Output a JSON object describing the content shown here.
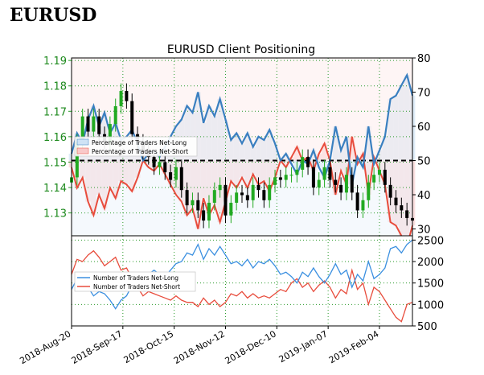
{
  "page": {
    "title": "EURUSD"
  },
  "chart_data": [
    {
      "type": "candlestick-area",
      "title": "EURUSD Client Positioning",
      "price_axis": {
        "ticks": [
          "1.19",
          "1.18",
          "1.17",
          "1.16",
          "1.15",
          "1.14",
          "1.13"
        ],
        "ylim": [
          1.121,
          1.191
        ]
      },
      "pct_axis": {
        "ticks": [
          "80",
          "70",
          "60",
          "50",
          "40",
          "30"
        ],
        "ylim": [
          28,
          80
        ]
      },
      "x_ticks": [
        "2018-Aug-20",
        "2018-Sep-17",
        "2018-Oct-15",
        "2018-Nov-12",
        "2018-Dec-10",
        "2019-Jan-07",
        "2019-Feb-04"
      ],
      "x_tick_days": [
        0,
        28,
        56,
        84,
        112,
        140,
        168
      ],
      "x_range_days": [
        0,
        186
      ],
      "reference_line": 50,
      "legend": [
        "Percentage of Traders Net-Long",
        "Percentage of Traders Net-Short"
      ],
      "series": [
        {
          "name": "Percentage of Traders Net-Long",
          "color": "#3a7fc0",
          "x": [
            0,
            3,
            6,
            9,
            12,
            15,
            18,
            21,
            24,
            27,
            30,
            33,
            36,
            39,
            42,
            45,
            48,
            51,
            54,
            57,
            60,
            63,
            66,
            69,
            72,
            75,
            78,
            81,
            84,
            87,
            90,
            93,
            96,
            99,
            102,
            105,
            108,
            111,
            114,
            117,
            120,
            123,
            126,
            129,
            132,
            135,
            138,
            141,
            144,
            147,
            150,
            153,
            156,
            159,
            162,
            165,
            168,
            171,
            174,
            177,
            180,
            183,
            186
          ],
          "values": [
            52,
            58,
            55,
            62,
            66,
            60,
            64,
            58,
            61,
            56,
            57,
            59,
            55,
            50,
            52,
            53,
            51,
            54,
            57,
            60,
            62,
            66,
            64,
            70,
            61,
            66,
            63,
            68,
            62,
            56,
            58,
            55,
            58,
            54,
            57,
            56,
            59,
            55,
            50,
            52,
            49,
            46,
            50,
            49,
            53,
            48,
            45,
            50,
            60,
            53,
            57,
            43,
            51,
            48,
            60,
            49,
            53,
            57,
            68,
            69,
            72,
            75,
            69
          ]
        },
        {
          "name": "Percentage of Traders Net-Short",
          "color": "#e84c3c",
          "x": [
            0,
            3,
            6,
            9,
            12,
            15,
            18,
            21,
            24,
            27,
            30,
            33,
            36,
            39,
            42,
            45,
            48,
            51,
            54,
            57,
            60,
            63,
            66,
            69,
            72,
            75,
            78,
            81,
            84,
            87,
            90,
            93,
            96,
            99,
            102,
            105,
            108,
            111,
            114,
            117,
            120,
            123,
            126,
            129,
            132,
            135,
            138,
            141,
            144,
            147,
            150,
            153,
            156,
            159,
            162,
            165,
            168,
            171,
            174,
            177,
            180,
            183,
            186
          ],
          "values": [
            48,
            42,
            45,
            38,
            34,
            40,
            36,
            42,
            39,
            44,
            43,
            41,
            45,
            50,
            48,
            47,
            49,
            46,
            43,
            40,
            38,
            34,
            36,
            30,
            39,
            34,
            37,
            32,
            38,
            44,
            42,
            45,
            42,
            46,
            43,
            44,
            41,
            45,
            50,
            48,
            51,
            54,
            50,
            51,
            47,
            52,
            55,
            50,
            40,
            47,
            43,
            57,
            49,
            52,
            40,
            51,
            47,
            43,
            32,
            31,
            28,
            25,
            31
          ]
        },
        {
          "name": "EURUSD",
          "type": "candles",
          "color_up": "#22aa22",
          "color_down": "#000000",
          "x": [
            0,
            3,
            6,
            9,
            12,
            15,
            18,
            21,
            24,
            27,
            30,
            33,
            36,
            39,
            42,
            45,
            48,
            51,
            54,
            57,
            60,
            63,
            66,
            69,
            72,
            75,
            78,
            81,
            84,
            87,
            90,
            93,
            96,
            99,
            102,
            105,
            108,
            111,
            114,
            117,
            120,
            123,
            126,
            129,
            132,
            135,
            138,
            141,
            144,
            147,
            150,
            153,
            156,
            159,
            162,
            165,
            168,
            171,
            174,
            177,
            180,
            183,
            186
          ],
          "close": [
            1.144,
            1.158,
            1.168,
            1.162,
            1.168,
            1.161,
            1.158,
            1.165,
            1.172,
            1.178,
            1.174,
            1.161,
            1.158,
            1.154,
            1.152,
            1.148,
            1.15,
            1.146,
            1.143,
            1.148,
            1.139,
            1.133,
            1.135,
            1.131,
            1.127,
            1.134,
            1.139,
            1.141,
            1.129,
            1.134,
            1.138,
            1.137,
            1.135,
            1.141,
            1.139,
            1.135,
            1.141,
            1.144,
            1.143,
            1.145,
            1.145,
            1.147,
            1.152,
            1.148,
            1.14,
            1.143,
            1.148,
            1.143,
            1.141,
            1.138,
            1.145,
            1.138,
            1.131,
            1.135,
            1.142,
            1.145,
            1.147,
            1.141,
            1.136,
            1.133,
            1.131,
            1.128,
            1.127
          ]
        }
      ]
    },
    {
      "type": "line",
      "y_axis": {
        "ticks": [
          "2500",
          "2000",
          "1500",
          "1000",
          "500"
        ],
        "ylim": [
          500,
          2600
        ]
      },
      "legend": [
        "Number of Traders Net-Long",
        "Number of Traders Net-Short"
      ],
      "series": [
        {
          "name": "Number of Traders Net-Long",
          "color": "#3a8fe0",
          "x": [
            0,
            3,
            6,
            9,
            12,
            15,
            18,
            21,
            24,
            27,
            30,
            33,
            36,
            39,
            42,
            45,
            48,
            51,
            54,
            57,
            60,
            63,
            66,
            69,
            72,
            75,
            78,
            81,
            84,
            87,
            90,
            93,
            96,
            99,
            102,
            105,
            108,
            111,
            114,
            117,
            120,
            123,
            126,
            129,
            132,
            135,
            138,
            141,
            144,
            147,
            150,
            153,
            156,
            159,
            162,
            165,
            168,
            171,
            174,
            177,
            180,
            183,
            186
          ],
          "values": [
            1350,
            1600,
            1550,
            1400,
            1200,
            1300,
            1250,
            1100,
            900,
            1100,
            1200,
            1450,
            1550,
            1650,
            1700,
            1800,
            1700,
            1650,
            1800,
            1950,
            2000,
            2200,
            2150,
            2400,
            2050,
            2300,
            2150,
            2350,
            2150,
            1950,
            2000,
            1900,
            2050,
            1850,
            2000,
            1950,
            2050,
            1900,
            1700,
            1750,
            1650,
            1500,
            1750,
            1650,
            1850,
            1650,
            1500,
            1700,
            1950,
            1700,
            1800,
            1400,
            1700,
            1550,
            2000,
            1600,
            1700,
            1850,
            2300,
            2350,
            2200,
            2400,
            2500
          ]
        },
        {
          "name": "Number of Traders Net-Short",
          "color": "#e84c3c",
          "x": [
            0,
            3,
            6,
            9,
            12,
            15,
            18,
            21,
            24,
            27,
            30,
            33,
            36,
            39,
            42,
            45,
            48,
            51,
            54,
            57,
            60,
            63,
            66,
            69,
            72,
            75,
            78,
            81,
            84,
            87,
            90,
            93,
            96,
            99,
            102,
            105,
            108,
            111,
            114,
            117,
            120,
            123,
            126,
            129,
            132,
            135,
            138,
            141,
            144,
            147,
            150,
            153,
            156,
            159,
            162,
            165,
            168,
            171,
            174,
            177,
            180,
            183,
            186
          ],
          "values": [
            1700,
            2050,
            2000,
            2150,
            2250,
            2100,
            1900,
            2000,
            2100,
            1800,
            1850,
            1600,
            1400,
            1200,
            1300,
            1250,
            1200,
            1150,
            1100,
            1200,
            1100,
            1050,
            1050,
            950,
            1150,
            1000,
            1100,
            950,
            1050,
            1250,
            1200,
            1300,
            1150,
            1250,
            1150,
            1200,
            1150,
            1250,
            1350,
            1300,
            1500,
            1600,
            1400,
            1500,
            1300,
            1450,
            1550,
            1400,
            1150,
            1350,
            1250,
            1800,
            1350,
            1500,
            1000,
            1400,
            1300,
            1100,
            900,
            700,
            600,
            1000,
            1050
          ]
        }
      ]
    }
  ]
}
